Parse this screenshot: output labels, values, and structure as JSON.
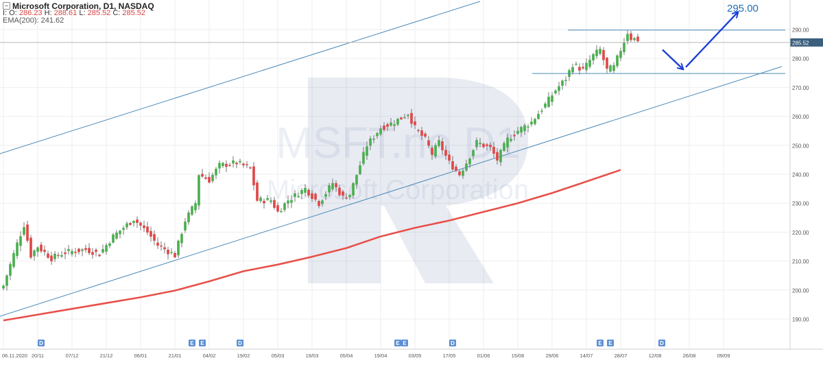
{
  "header": {
    "title": "Microsoft Corporation,  D1,  NASDAQ",
    "ohlc_prefix_o": "I: O:",
    "o": "286.23",
    "h_prefix": "H:",
    "h": "288.61",
    "l_prefix": "L:",
    "l": "285.52",
    "c_prefix": "C:",
    "c": "285.52",
    "ema": "EMA(200): 241.62"
  },
  "colors": {
    "up": "#4caf50",
    "down": "#e04848",
    "ema": "#e8504a",
    "trend": "#4a89b8",
    "target_arrow": "#1a3ed6",
    "price_tag": "#3c5f7e",
    "event_marker": "#5b8fd4"
  },
  "watermark": {
    "line1": "MSFT.no D1",
    "line2": "Microsoft Corporation"
  },
  "chart_data": {
    "type": "candlestick",
    "y_axis": {
      "ticks": [
        "190.00",
        "200.00",
        "210.00",
        "220.00",
        "230.00",
        "240.00",
        "250.00",
        "260.00",
        "270.00",
        "280.00",
        "290.00"
      ],
      "tick_values": [
        190,
        200,
        210,
        220,
        230,
        240,
        250,
        260,
        270,
        280,
        290
      ],
      "ylim": [
        185,
        298
      ]
    },
    "x_axis": {
      "labels": [
        "06.11.2020",
        "20/11",
        "07/12",
        "21/12",
        "06/01",
        "21/01",
        "04/02",
        "19/02",
        "05/03",
        "19/03",
        "05/04",
        "19/04",
        "03/05",
        "17/05",
        "01/06",
        "15/06",
        "29/06",
        "14/07",
        "28/07",
        "12/08",
        "26/08",
        "09/09"
      ],
      "label_bars": [
        0,
        10,
        20,
        30,
        40,
        50,
        60,
        70,
        80,
        90,
        100,
        110,
        120,
        130,
        140,
        150,
        160,
        170,
        180,
        190,
        200,
        210
      ]
    },
    "event_markers": [
      {
        "label": "D",
        "bar": 11
      },
      {
        "label": "E",
        "bar": 55
      },
      {
        "label": "E",
        "bar": 58
      },
      {
        "label": "D",
        "bar": 69
      },
      {
        "label": "E",
        "bar": 115
      },
      {
        "label": "E",
        "bar": 117
      },
      {
        "label": "D",
        "bar": 131
      },
      {
        "label": "E",
        "bar": 174
      },
      {
        "label": "E",
        "bar": 177
      },
      {
        "label": "D",
        "bar": 192
      }
    ],
    "last_price": {
      "label": "285.52",
      "value": 285.52
    },
    "target": {
      "label": "295.00",
      "value": 295
    },
    "support_level": 274.8,
    "resistance_level": 289.8,
    "ema200": [
      {
        "bar": 0,
        "value": 189.5
      },
      {
        "bar": 20,
        "value": 193.5
      },
      {
        "bar": 40,
        "value": 197.5
      },
      {
        "bar": 50,
        "value": 199.8
      },
      {
        "bar": 60,
        "value": 203.0
      },
      {
        "bar": 70,
        "value": 206.5
      },
      {
        "bar": 80,
        "value": 208.8
      },
      {
        "bar": 90,
        "value": 211.5
      },
      {
        "bar": 100,
        "value": 214.5
      },
      {
        "bar": 110,
        "value": 218.5
      },
      {
        "bar": 120,
        "value": 221.5
      },
      {
        "bar": 130,
        "value": 224.0
      },
      {
        "bar": 140,
        "value": 227.0
      },
      {
        "bar": 150,
        "value": 230.0
      },
      {
        "bar": 160,
        "value": 233.5
      },
      {
        "bar": 170,
        "value": 237.5
      },
      {
        "bar": 180,
        "value": 241.5
      }
    ],
    "candle_waypoints": [
      {
        "bar": 0,
        "value": 201.5
      },
      {
        "bar": 4,
        "value": 216
      },
      {
        "bar": 6,
        "value": 222.5
      },
      {
        "bar": 8,
        "value": 212
      },
      {
        "bar": 10,
        "value": 215
      },
      {
        "bar": 14,
        "value": 211
      },
      {
        "bar": 18,
        "value": 213
      },
      {
        "bar": 24,
        "value": 214
      },
      {
        "bar": 28,
        "value": 212.5
      },
      {
        "bar": 32,
        "value": 218.5
      },
      {
        "bar": 38,
        "value": 224.5
      },
      {
        "bar": 42,
        "value": 220
      },
      {
        "bar": 45,
        "value": 215.5
      },
      {
        "bar": 50,
        "value": 212
      },
      {
        "bar": 53,
        "value": 224
      },
      {
        "bar": 56,
        "value": 230
      },
      {
        "bar": 57,
        "value": 240
      },
      {
        "bar": 60,
        "value": 238
      },
      {
        "bar": 63,
        "value": 243
      },
      {
        "bar": 68,
        "value": 244
      },
      {
        "bar": 72,
        "value": 242
      },
      {
        "bar": 74,
        "value": 231
      },
      {
        "bar": 78,
        "value": 231
      },
      {
        "bar": 80,
        "value": 227
      },
      {
        "bar": 83,
        "value": 231
      },
      {
        "bar": 88,
        "value": 235
      },
      {
        "bar": 92,
        "value": 230
      },
      {
        "bar": 96,
        "value": 237
      },
      {
        "bar": 99,
        "value": 232
      },
      {
        "bar": 101,
        "value": 233
      },
      {
        "bar": 106,
        "value": 250
      },
      {
        "bar": 110,
        "value": 256
      },
      {
        "bar": 114,
        "value": 258
      },
      {
        "bar": 118,
        "value": 261
      },
      {
        "bar": 120,
        "value": 256
      },
      {
        "bar": 123,
        "value": 252
      },
      {
        "bar": 125,
        "value": 247
      },
      {
        "bar": 127,
        "value": 251
      },
      {
        "bar": 130,
        "value": 244
      },
      {
        "bar": 133,
        "value": 240
      },
      {
        "bar": 135,
        "value": 244
      },
      {
        "bar": 138,
        "value": 251
      },
      {
        "bar": 142,
        "value": 249
      },
      {
        "bar": 144,
        "value": 245
      },
      {
        "bar": 147,
        "value": 252
      },
      {
        "bar": 150,
        "value": 255
      },
      {
        "bar": 154,
        "value": 258
      },
      {
        "bar": 158,
        "value": 264
      },
      {
        "bar": 161,
        "value": 269
      },
      {
        "bar": 164,
        "value": 273
      },
      {
        "bar": 166,
        "value": 278
      },
      {
        "bar": 169,
        "value": 276
      },
      {
        "bar": 172,
        "value": 281
      },
      {
        "bar": 174,
        "value": 283
      },
      {
        "bar": 176,
        "value": 276
      },
      {
        "bar": 178,
        "value": 277
      },
      {
        "bar": 180,
        "value": 283
      },
      {
        "bar": 182,
        "value": 289
      },
      {
        "bar": 183,
        "value": 287
      },
      {
        "bar": 185,
        "value": 286.5
      }
    ]
  }
}
